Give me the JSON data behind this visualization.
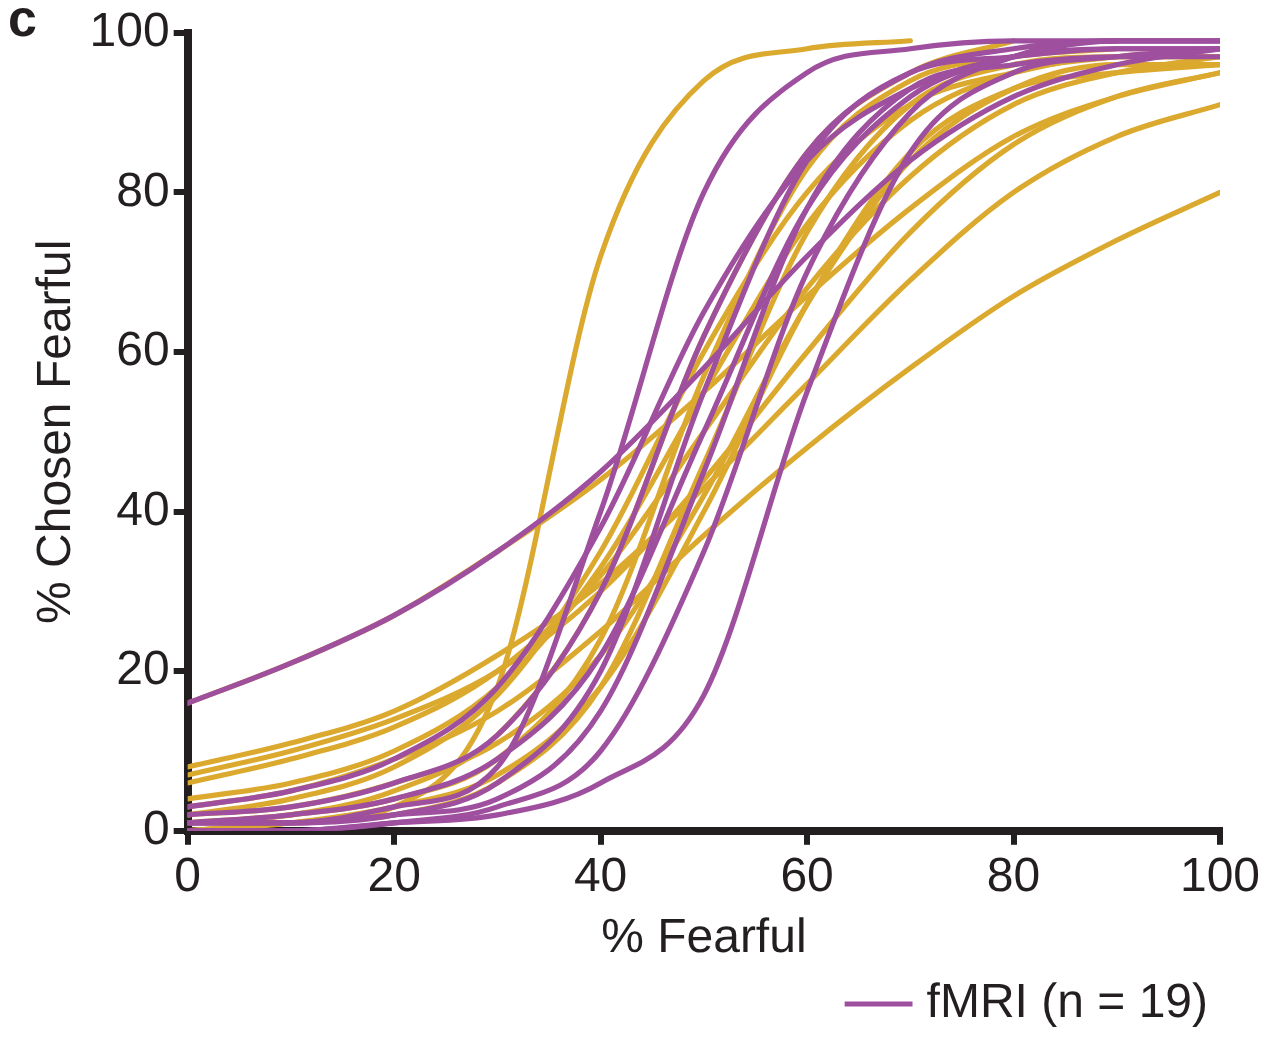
{
  "chart_data": {
    "type": "line",
    "xlabel": "% Fearful",
    "ylabel": "% Chosen Fearful",
    "annotations": [
      "c"
    ],
    "x": [
      0,
      10,
      20,
      30,
      40,
      50,
      60,
      70,
      80,
      90,
      100
    ],
    "xlim": [
      0,
      100
    ],
    "xticks": [
      0,
      20,
      40,
      60,
      80,
      100
    ],
    "ylim": [
      0,
      100
    ],
    "yticks": [
      0,
      20,
      40,
      60,
      80,
      100
    ],
    "grid": false,
    "legend": "bottom right",
    "marker": "none",
    "line_style": "solid",
    "series": [
      {
        "name": "fMRI (n = 19)",
        "color": "#9e4f9e",
        "values": [
          16,
          21,
          27,
          35,
          45,
          58,
          72,
          84,
          92,
          96,
          98
        ]
      },
      {
        "color": "#9e4f9e",
        "values": [
          1,
          2,
          4,
          9,
          22,
          50,
          78,
          92,
          97,
          99,
          99
        ]
      },
      {
        "color": "#9e4f9e",
        "values": [
          0,
          0,
          1,
          3,
          10,
          35,
          70,
          90,
          97,
          99,
          99
        ]
      },
      {
        "color": "#9e4f9e",
        "values": [
          0,
          0,
          1,
          2,
          6,
          17,
          55,
          85,
          95,
          97,
          98
        ]
      },
      {
        "color": "#9e4f9e",
        "values": [
          2,
          3,
          6,
          12,
          30,
          62,
          85,
          95,
          98,
          99,
          99
        ]
      },
      {
        "color": "#9e4f9e",
        "values": [
          1,
          1,
          2,
          6,
          20,
          55,
          84,
          95,
          97,
          98,
          98
        ]
      },
      {
        "color": "#9e4f9e",
        "values": [
          3,
          5,
          9,
          18,
          38,
          65,
          84,
          93,
          97,
          98,
          98
        ]
      },
      {
        "color": "#9e4f9e",
        "values": [
          1,
          1,
          3,
          8,
          40,
          80,
          95,
          98,
          99,
          99,
          null
        ]
      },
      {
        "color": "#9e4f9e",
        "values": [
          1,
          1,
          2,
          4,
          15,
          45,
          78,
          93,
          96,
          97,
          97
        ]
      },
      {
        "color": "#dba92e",
        "values": [
          16,
          21,
          27,
          35,
          44,
          55,
          67,
          78,
          87,
          92,
          95
        ]
      },
      {
        "color": "#dba92e",
        "values": [
          0,
          1,
          3,
          18,
          72,
          94,
          98,
          99,
          null,
          null,
          null
        ]
      },
      {
        "color": "#dba92e",
        "values": [
          3,
          5,
          9,
          15,
          25,
          37,
          48,
          58,
          67,
          74,
          80
        ]
      },
      {
        "color": "#dba92e",
        "values": [
          8,
          11,
          15,
          22,
          31,
          43,
          56,
          69,
          80,
          87,
          91
        ]
      },
      {
        "color": "#dba92e",
        "values": [
          2,
          4,
          8,
          17,
          35,
          60,
          80,
          91,
          95,
          97,
          97
        ]
      },
      {
        "color": "#dba92e",
        "values": [
          6,
          9,
          13,
          20,
          32,
          50,
          68,
          82,
          91,
          95,
          97
        ]
      },
      {
        "color": "#dba92e",
        "values": [
          1,
          2,
          4,
          9,
          24,
          57,
          83,
          94,
          97,
          98,
          null
        ]
      },
      {
        "color": "#dba92e",
        "values": [
          0,
          1,
          2,
          6,
          18,
          46,
          75,
          91,
          96,
          97,
          97
        ]
      },
      {
        "color": "#dba92e",
        "values": [
          4,
          6,
          10,
          18,
          33,
          55,
          76,
          89,
          95,
          97,
          98
        ]
      },
      {
        "color": "#dba92e",
        "values": [
          0,
          1,
          3,
          7,
          18,
          40,
          66,
          85,
          93,
          95,
          96
        ]
      },
      {
        "color": "#dba92e",
        "values": [
          1,
          2,
          5,
          12,
          30,
          62,
          85,
          95,
          99,
          null,
          null
        ]
      },
      {
        "color": "#dba92e",
        "values": [
          7,
          10,
          14,
          20,
          30,
          44,
          60,
          75,
          86,
          92,
          95
        ]
      },
      {
        "color": "#dba92e",
        "values": [
          2,
          3,
          6,
          11,
          22,
          42,
          66,
          84,
          93,
          96,
          96
        ]
      }
    ]
  }
}
